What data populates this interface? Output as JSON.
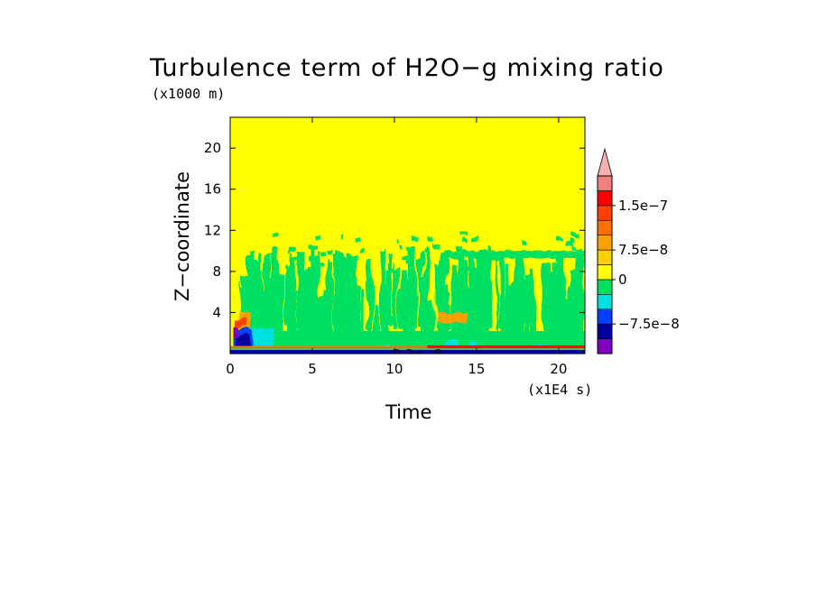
{
  "chart_data": {
    "type": "heatmap",
    "title": "Turbulence term of H2O−g mixing ratio",
    "xlabel": "Time",
    "ylabel": "Z−coordinate",
    "x_unit": "(x1E4 s)",
    "y_unit": "(x1000 m)",
    "xlim": [
      0,
      21.6
    ],
    "ylim": [
      0,
      23
    ],
    "x_ticks": [
      "0",
      "5",
      "10",
      "15",
      "20"
    ],
    "x_tick_values": [
      0,
      5,
      10,
      15,
      20
    ],
    "y_ticks": [
      "4",
      "8",
      "12",
      "16",
      "20"
    ],
    "y_tick_values": [
      4,
      8,
      12,
      16,
      20
    ],
    "colorbar": {
      "labels": [
        "1.5e−7",
        "7.5e−8",
        "0",
        "−7.5e−8"
      ],
      "label_values": [
        1.5e-07,
        7.5e-08,
        0,
        -7.5e-08
      ],
      "colors": [
        "#7f00bf",
        "#0000a0",
        "#0040ff",
        "#00e0e0",
        "#00e060",
        "#ffff00",
        "#ffd000",
        "#ffa000",
        "#ff7000",
        "#ff4000",
        "#ff0000",
        "#f08080",
        "#f8b0b0"
      ],
      "extend": "max"
    },
    "background_level": 0,
    "features": [
      {
        "x": [
          0.5,
          21.6
        ],
        "y": [
          1,
          11
        ],
        "level": "slightly negative",
        "color": "#00e060"
      },
      {
        "x": [
          0.2,
          1.5
        ],
        "y": [
          0.3,
          3
        ],
        "level": "strongly negative",
        "color": "#0000a0"
      },
      {
        "x": [
          0.5,
          1.2
        ],
        "y": [
          2,
          4
        ],
        "level": "positive",
        "color": "#ff7000"
      },
      {
        "x": [
          0,
          21.6
        ],
        "y": [
          0,
          0.6
        ],
        "level": "mixed near surface",
        "color": "#ff4000"
      },
      {
        "x": [
          12.5,
          14.5
        ],
        "y": [
          3,
          4
        ],
        "level": "positive",
        "color": "#ffa000"
      }
    ],
    "partial_label": "2.2e−8"
  }
}
